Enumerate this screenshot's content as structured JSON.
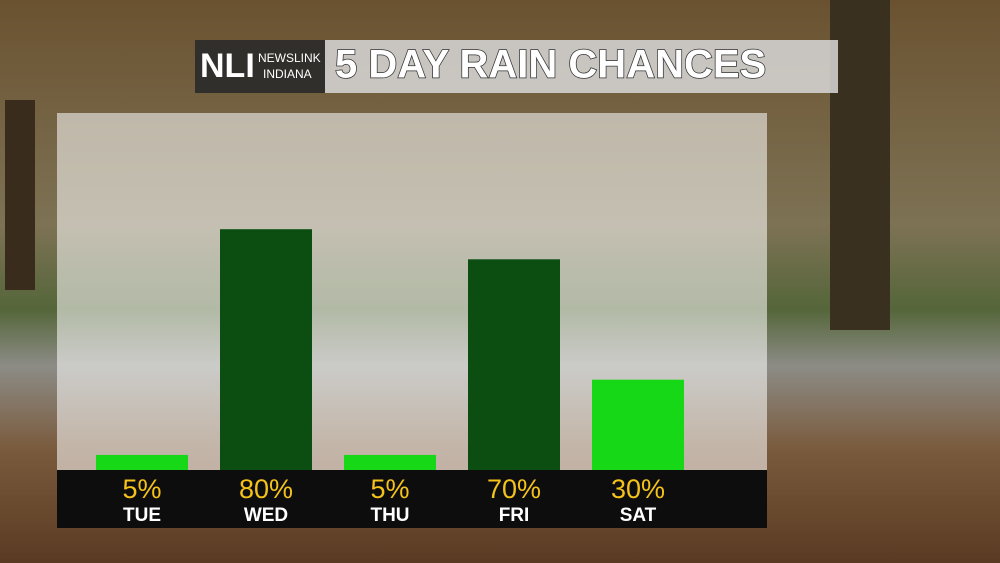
{
  "logo": {
    "mark": "NLI",
    "name": "NEWSLINK",
    "region": "INDIANA"
  },
  "chart_data": {
    "type": "bar",
    "title": "5 DAY RAIN CHANCES",
    "categories": [
      "TUE",
      "WED",
      "THU",
      "FRI",
      "SAT"
    ],
    "values": [
      5,
      80,
      5,
      70,
      30
    ],
    "value_labels": [
      "5%",
      "80%",
      "5%",
      "70%",
      "30%"
    ],
    "colors": [
      "#16d816",
      "#0c4d12",
      "#16d816",
      "#0c4d12",
      "#16d816"
    ]
  }
}
